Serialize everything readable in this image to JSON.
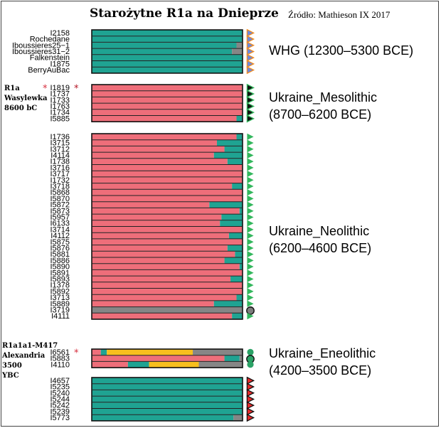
{
  "header": {
    "title": "Starożytne R1a na Dnieprze",
    "source": "Źródło: Mathieson IX 2017"
  },
  "notes": {
    "wasylewka": [
      "R1a",
      "Wasylewka",
      "8600 bC"
    ],
    "alexandria": [
      "R1a1a1-M417",
      "Alexandria",
      "3500",
      "YBC"
    ]
  },
  "colors": {
    "teal": "#1fa392",
    "pink": "#ee6e7a",
    "grey": "#868686",
    "yellow": "#f7bf1e",
    "tri_blue": "#6a88e0",
    "tri_orange": "#f28c1f",
    "tri_black": "#111111",
    "tri_green": "#33b75d",
    "tri_red": "#e62a2a",
    "circle_green": "#2ba266",
    "circle_grey": "#7d7d7d",
    "star": "#d52a3a"
  },
  "chart_data": {
    "type": "stacked-bar",
    "orientation": "horizontal",
    "title": "Starożytne R1a na Dnieprze",
    "xlim": [
      0,
      1
    ],
    "components": [
      "teal",
      "pink",
      "grey",
      "yellow"
    ],
    "groups": [
      {
        "label": "WHG (12300–5300 BCE)",
        "label_lines": [
          "WHG (12300–5300 BCE)"
        ],
        "marker": "triangle-blue-orange",
        "samples": [
          {
            "name": "I2158",
            "segments": [
              [
                "teal",
                1.0
              ]
            ]
          },
          {
            "name": "Rochedane",
            "segments": [
              [
                "teal",
                1.0
              ]
            ]
          },
          {
            "name": "Iboussieres25−1",
            "segments": [
              [
                "teal",
                0.96
              ],
              [
                "grey",
                0.04
              ]
            ]
          },
          {
            "name": "Iboussieres31−2",
            "segments": [
              [
                "teal",
                0.93
              ],
              [
                "grey",
                0.07
              ]
            ]
          },
          {
            "name": "Falkenstein",
            "segments": [
              [
                "teal",
                1.0
              ]
            ]
          },
          {
            "name": "I1875",
            "segments": [
              [
                "teal",
                1.0
              ]
            ]
          },
          {
            "name": "BerryAuBac",
            "segments": [
              [
                "teal",
                1.0
              ]
            ]
          }
        ]
      },
      {
        "label": "Ukraine_Mesolithic (8700–6200 BCE)",
        "label_lines": [
          "Ukraine_Mesolithic",
          "(8700–6200 BCE)"
        ],
        "marker": "triangle-black",
        "samples": [
          {
            "name": "I1819",
            "segments": [
              [
                "pink",
                1.0
              ]
            ],
            "star": true
          },
          {
            "name": "I1737",
            "segments": [
              [
                "pink",
                1.0
              ]
            ]
          },
          {
            "name": "I1733",
            "segments": [
              [
                "pink",
                1.0
              ]
            ]
          },
          {
            "name": "I1763",
            "segments": [
              [
                "pink",
                1.0
              ]
            ]
          },
          {
            "name": "I1734",
            "segments": [
              [
                "pink",
                1.0
              ]
            ]
          },
          {
            "name": "I5885",
            "segments": [
              [
                "pink",
                0.96
              ],
              [
                "teal",
                0.04
              ]
            ]
          }
        ]
      },
      {
        "label": "Ukraine_Neolithic (6200–4600 BCE)",
        "label_lines": [
          "Ukraine_Neolithic",
          "(6200–4600 BCE)"
        ],
        "marker": "triangle-green",
        "samples": [
          {
            "name": "I1736",
            "segments": [
              [
                "pink",
                0.96
              ],
              [
                "teal",
                0.04
              ]
            ]
          },
          {
            "name": "I3715",
            "segments": [
              [
                "pink",
                0.83
              ],
              [
                "teal",
                0.17
              ]
            ]
          },
          {
            "name": "I3712",
            "segments": [
              [
                "pink",
                0.88
              ],
              [
                "teal",
                0.12
              ]
            ]
          },
          {
            "name": "I4114",
            "segments": [
              [
                "pink",
                0.81
              ],
              [
                "teal",
                0.19
              ]
            ]
          },
          {
            "name": "I1738",
            "segments": [
              [
                "pink",
                0.9
              ],
              [
                "teal",
                0.1
              ]
            ]
          },
          {
            "name": "I3716",
            "segments": [
              [
                "pink",
                1.0
              ]
            ]
          },
          {
            "name": "I3717",
            "segments": [
              [
                "pink",
                1.0
              ]
            ]
          },
          {
            "name": "I1732",
            "segments": [
              [
                "pink",
                1.0
              ]
            ]
          },
          {
            "name": "I3718",
            "segments": [
              [
                "pink",
                0.93
              ],
              [
                "teal",
                0.07
              ]
            ]
          },
          {
            "name": "I5868",
            "segments": [
              [
                "pink",
                1.0
              ]
            ]
          },
          {
            "name": "I5870",
            "segments": [
              [
                "pink",
                1.0
              ]
            ]
          },
          {
            "name": "I5872",
            "segments": [
              [
                "pink",
                0.78
              ],
              [
                "teal",
                0.22
              ]
            ]
          },
          {
            "name": "I5873",
            "segments": [
              [
                "pink",
                0.98
              ],
              [
                "teal",
                0.02
              ]
            ]
          },
          {
            "name": "I5957",
            "segments": [
              [
                "pink",
                0.86
              ],
              [
                "teal",
                0.14
              ]
            ]
          },
          {
            "name": "I6133",
            "segments": [
              [
                "pink",
                0.85
              ],
              [
                "teal",
                0.15
              ]
            ]
          },
          {
            "name": "I3714",
            "segments": [
              [
                "pink",
                1.0
              ]
            ]
          },
          {
            "name": "I4112",
            "segments": [
              [
                "pink",
                0.91
              ],
              [
                "teal",
                0.09
              ]
            ]
          },
          {
            "name": "I5875",
            "segments": [
              [
                "pink",
                1.0
              ]
            ]
          },
          {
            "name": "I5876",
            "segments": [
              [
                "pink",
                0.9
              ],
              [
                "teal",
                0.1
              ]
            ]
          },
          {
            "name": "I5881",
            "segments": [
              [
                "pink",
                0.95
              ],
              [
                "teal",
                0.05
              ]
            ]
          },
          {
            "name": "I5886",
            "segments": [
              [
                "pink",
                0.88
              ],
              [
                "teal",
                0.12
              ]
            ]
          },
          {
            "name": "I5890",
            "segments": [
              [
                "pink",
                0.98
              ],
              [
                "teal",
                0.02
              ]
            ]
          },
          {
            "name": "I5891",
            "segments": [
              [
                "pink",
                1.0
              ]
            ]
          },
          {
            "name": "I5893",
            "segments": [
              [
                "pink",
                0.92
              ],
              [
                "teal",
                0.08
              ]
            ]
          },
          {
            "name": "I1378",
            "segments": [
              [
                "pink",
                1.0
              ]
            ]
          },
          {
            "name": "I5892",
            "segments": [
              [
                "pink",
                1.0
              ]
            ]
          },
          {
            "name": "I3713",
            "segments": [
              [
                "pink",
                0.96
              ],
              [
                "teal",
                0.04
              ]
            ]
          },
          {
            "name": "I5889",
            "segments": [
              [
                "pink",
                0.81
              ],
              [
                "teal",
                0.19
              ]
            ]
          },
          {
            "name": "I3719",
            "segments": [
              [
                "grey",
                1.0
              ]
            ],
            "marker": "circle-grey"
          },
          {
            "name": "I4111",
            "segments": [
              [
                "pink",
                0.93
              ],
              [
                "teal",
                0.07
              ]
            ]
          }
        ]
      },
      {
        "label": "Ukraine_Eneolithic (4200–3500 BCE)",
        "label_lines": [
          "Ukraine_Eneolithic",
          "(4200–3500 BCE)"
        ],
        "marker": "circle-green",
        "samples": [
          {
            "name": "I6561",
            "segments": [
              [
                "pink",
                0.06
              ],
              [
                "teal",
                0.04
              ],
              [
                "yellow",
                0.57
              ],
              [
                "grey",
                0.33
              ]
            ],
            "star": true
          },
          {
            "name": "I5883",
            "segments": [
              [
                "pink",
                0.88
              ],
              [
                "teal",
                0.1
              ],
              [
                "grey",
                0.02
              ]
            ],
            "marker": "circle-green-ring"
          },
          {
            "name": "I4110",
            "segments": [
              [
                "pink",
                0.24
              ],
              [
                "teal",
                0.14
              ],
              [
                "yellow",
                0.33
              ],
              [
                "grey",
                0.29
              ]
            ]
          }
        ]
      },
      {
        "label": "",
        "label_lines": [],
        "marker": "triangle-red",
        "samples": [
          {
            "name": "I4657",
            "segments": [
              [
                "teal",
                1.0
              ]
            ]
          },
          {
            "name": "I5235",
            "segments": [
              [
                "teal",
                1.0
              ]
            ]
          },
          {
            "name": "I5240",
            "segments": [
              [
                "teal",
                1.0
              ]
            ]
          },
          {
            "name": "I5244",
            "segments": [
              [
                "teal",
                1.0
              ]
            ]
          },
          {
            "name": "I5242",
            "segments": [
              [
                "teal",
                1.0
              ]
            ]
          },
          {
            "name": "I5239",
            "segments": [
              [
                "teal",
                1.0
              ]
            ]
          },
          {
            "name": "I5773",
            "segments": [
              [
                "teal",
                0.94
              ],
              [
                "grey",
                0.06
              ]
            ]
          }
        ]
      }
    ]
  }
}
